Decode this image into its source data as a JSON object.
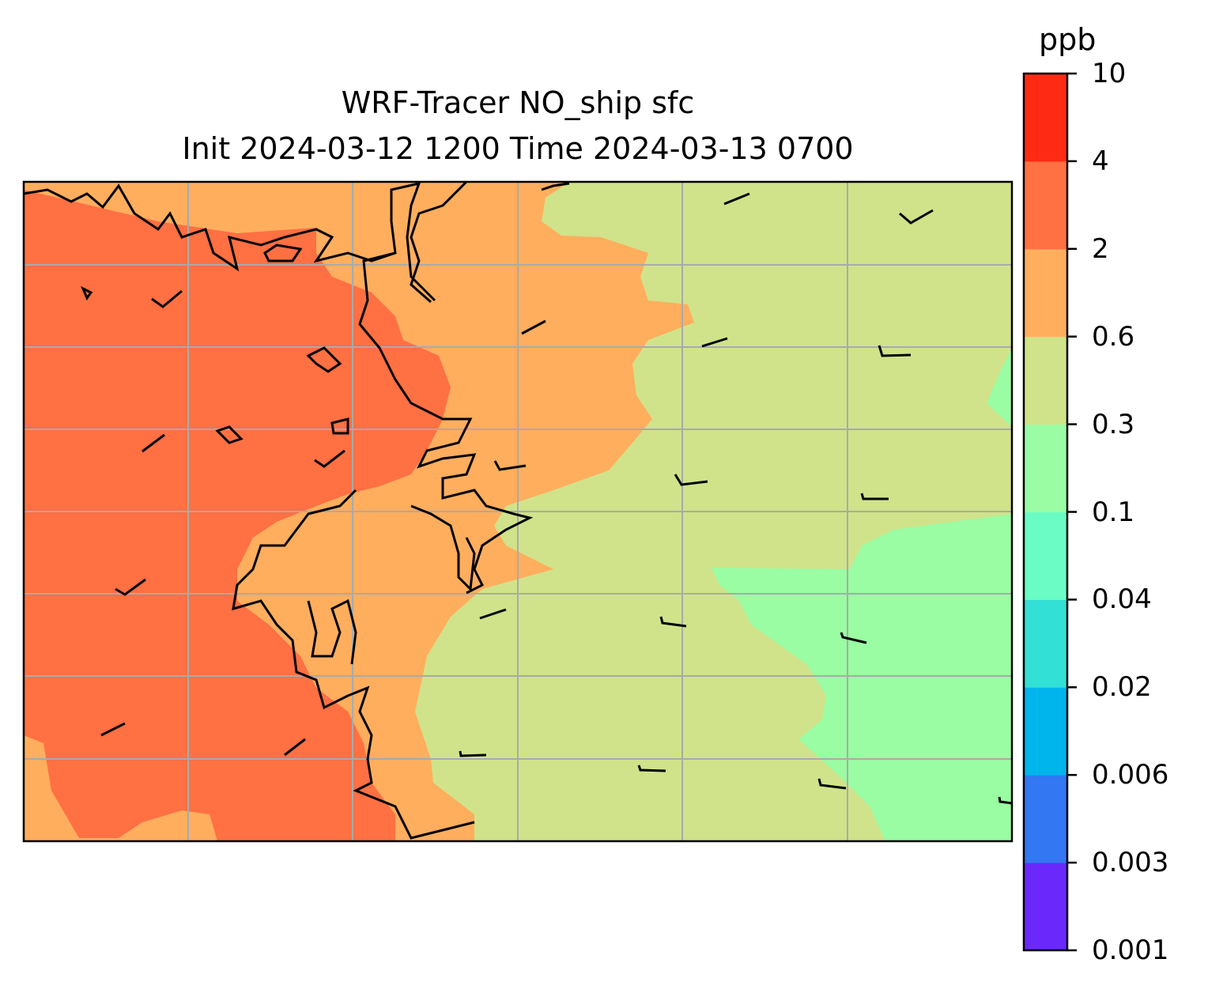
{
  "chart_data": {
    "type": "heatmap",
    "title": "WRF-Tracer NO_ship sfc",
    "subtitle": "Init 2024-03-12 1200 Time 2024-03-13 0700",
    "colorbar": {
      "label": "ppb",
      "levels": [
        "0.001",
        "0.003",
        "0.006",
        "0.02",
        "0.04",
        "0.1",
        "0.3",
        "0.6",
        "2",
        "4",
        "10"
      ],
      "colors": [
        "#6a28fa",
        "#3377f2",
        "#00b4ec",
        "#33e0d6",
        "#6afcc4",
        "#9afca3",
        "#d0e38a",
        "#ffae5e",
        "#ff7043",
        "#ff2a14"
      ]
    },
    "grid": true
  }
}
